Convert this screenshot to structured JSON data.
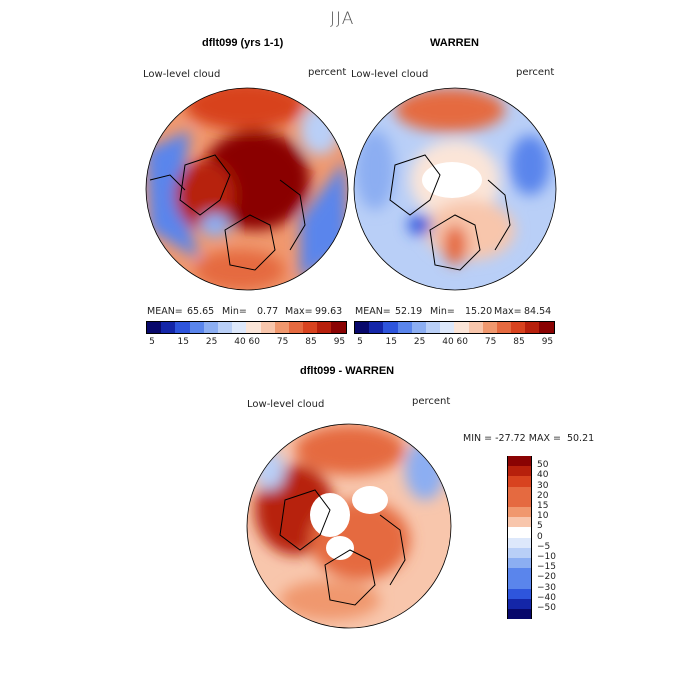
{
  "page_title": "JJA",
  "colors": {
    "palette": [
      "#08086b",
      "#1426a8",
      "#2e55dc",
      "#5a85ec",
      "#8caef2",
      "#b9cff7",
      "#dde8fb",
      "#fbe5d8",
      "#f8c6ac",
      "#f0986e",
      "#e56a40",
      "#d8431f",
      "#b7200c",
      "#8a0303"
    ],
    "land_outline": "#000000"
  },
  "chart_data": [
    {
      "type": "heatmap",
      "name": "panel-left",
      "title": "dflt099 (yrs 1-1)",
      "field_label": "Low-level cloud",
      "unit_label": "percent",
      "mean_label": "MEAN=",
      "mean": "65.65",
      "min_label": "Min=",
      "min": "0.77",
      "max_label": "Max=",
      "max": "99.63",
      "colorbar_ticks": [
        "5",
        "15",
        "25",
        "40",
        "60",
        "75",
        "85",
        "95"
      ],
      "projection": "north polar stereographic"
    },
    {
      "type": "heatmap",
      "name": "panel-right",
      "title": "WARREN",
      "field_label": "Low-level cloud",
      "unit_label": "percent",
      "mean_label": "MEAN=",
      "mean": "52.19",
      "min_label": "Min=",
      "min": "15.20",
      "max_label": "Max=",
      "max": "84.54",
      "colorbar_ticks": [
        "5",
        "15",
        "25",
        "40",
        "60",
        "75",
        "85",
        "95"
      ],
      "projection": "north polar stereographic"
    },
    {
      "type": "heatmap",
      "name": "panel-diff",
      "title": "dflt099 - WARREN",
      "field_label": "Low-level cloud",
      "unit_label": "percent",
      "minmax_text": "MIN = -27.72 MAX =  50.21",
      "colorbar_ticks": [
        "50",
        "40",
        "30",
        "20",
        "15",
        "10",
        "5",
        "0",
        "−5",
        "−10",
        "−15",
        "−20",
        "−30",
        "−40",
        "−50"
      ],
      "projection": "north polar stereographic"
    }
  ]
}
